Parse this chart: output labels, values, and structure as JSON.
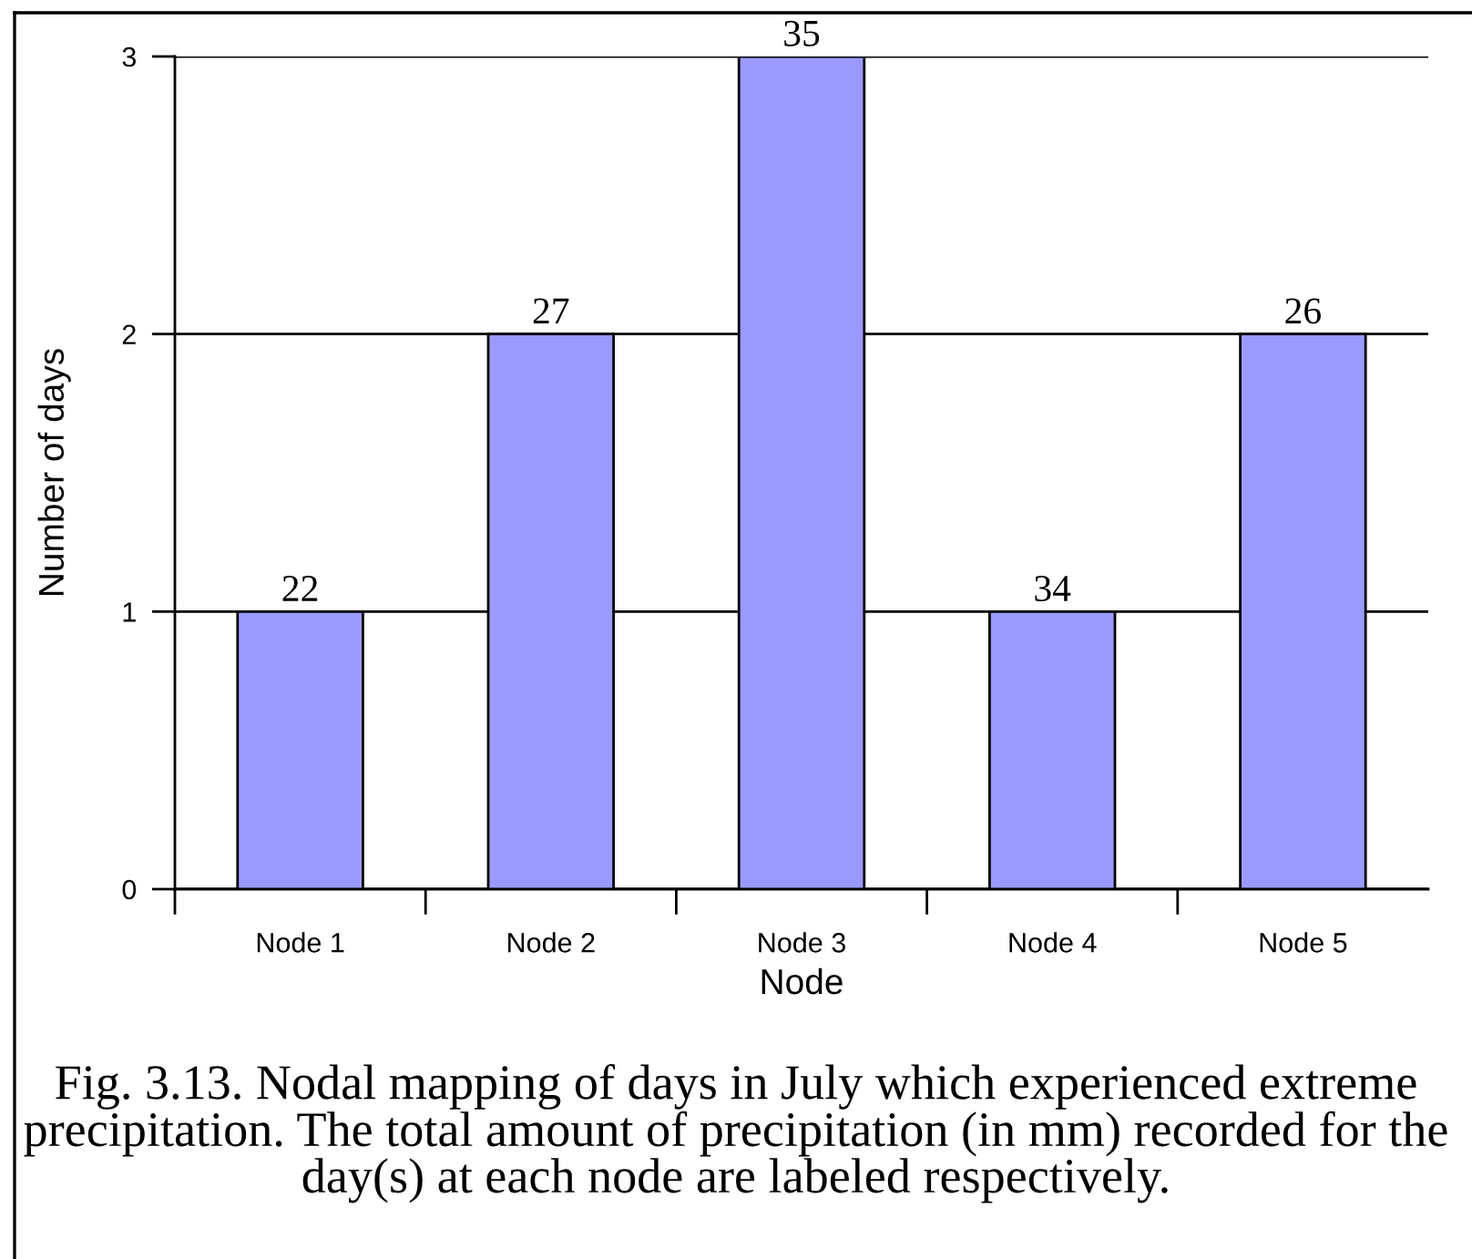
{
  "chart_data": {
    "type": "bar",
    "xlabel": "Node",
    "ylabel": "Number of days",
    "categories": [
      "Node 1",
      "Node 2",
      "Node 3",
      "Node 4",
      "Node 5"
    ],
    "values": [
      1,
      2,
      3,
      1,
      2
    ],
    "color": "#9999ff",
    "ylim": [
      0,
      3
    ],
    "yticks": [
      0,
      1,
      2,
      3
    ],
    "grid": "y",
    "annotations": [
      {
        "text": "22",
        "x": "Node 1",
        "y": 1
      },
      {
        "text": "27",
        "x": "Node 2",
        "y": 2
      },
      {
        "text": "35",
        "x": "Node 3",
        "y": 3
      },
      {
        "text": "34",
        "x": "Node 4",
        "y": 1
      },
      {
        "text": "26",
        "x": "Node 5",
        "y": 2
      },
      "Fig. 3.13. Nodal mapping of days in July which experienced extreme precipitation. The total amount of precipitation (in mm) recorded for the day(s) at each node are labeled respectively."
    ]
  }
}
